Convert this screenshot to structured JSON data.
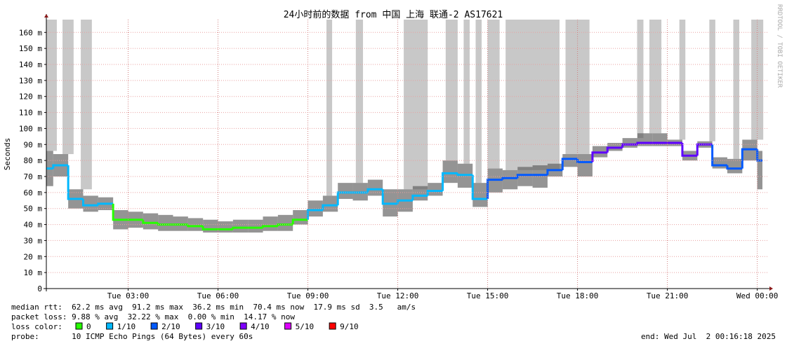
{
  "chart_data": {
    "type": "smokeping",
    "title": "24小时前的数据 from 中国 上海 联通-2 AS17621",
    "y_label": "Seconds",
    "side_note": "RRDTOOL / TOBI OETIKER",
    "xlim": [
      0.27,
      24.36
    ],
    "xticks": [
      {
        "value": 3,
        "label": "Tue 03:00"
      },
      {
        "value": 6,
        "label": "Tue 06:00"
      },
      {
        "value": 9,
        "label": "Tue 09:00"
      },
      {
        "value": 12,
        "label": "Tue 12:00"
      },
      {
        "value": 15,
        "label": "Tue 15:00"
      },
      {
        "value": 18,
        "label": "Tue 18:00"
      },
      {
        "value": 21,
        "label": "Tue 21:00"
      },
      {
        "value": 24,
        "label": "Wed 00:00"
      }
    ],
    "ylim": [
      0,
      168
    ],
    "yticks": [
      0,
      {
        "value": 10,
        "label": "10 m"
      },
      {
        "value": 20,
        "label": "20 m"
      },
      {
        "value": 30,
        "label": "30 m"
      },
      {
        "value": 40,
        "label": "40 m"
      },
      {
        "value": 50,
        "label": "50 m"
      },
      {
        "value": 60,
        "label": "60 m"
      },
      {
        "value": 70,
        "label": "70 m"
      },
      {
        "value": 80,
        "label": "80 m"
      },
      {
        "value": 90,
        "label": "90 m"
      },
      {
        "value": 100,
        "label": "100 m"
      },
      {
        "value": 110,
        "label": "110 m"
      },
      {
        "value": 120,
        "label": "120 m"
      },
      {
        "value": 130,
        "label": "130 m"
      },
      {
        "value": 140,
        "label": "140 m"
      },
      {
        "value": 150,
        "label": "150 m"
      },
      {
        "value": 160,
        "label": "160 m"
      }
    ],
    "grid": true,
    "x": [
      0.27,
      0.5,
      1,
      1.5,
      2,
      2.5,
      3,
      3.5,
      4,
      4.5,
      5,
      5.5,
      6,
      6.5,
      7,
      7.5,
      8,
      8.5,
      9,
      9.5,
      10,
      10.5,
      11,
      11.5,
      12,
      12.5,
      13,
      13.5,
      14,
      14.5,
      15,
      15.5,
      16,
      16.5,
      17,
      17.5,
      18,
      18.5,
      19,
      19.5,
      20,
      20.5,
      21,
      21.5,
      22,
      22.5,
      23,
      23.5,
      24
    ],
    "values": [
      75,
      77,
      56,
      52,
      53,
      43,
      43,
      41,
      40,
      40,
      39,
      37,
      37,
      38,
      38,
      39,
      40,
      43,
      49,
      52,
      60,
      60,
      62,
      53,
      55,
      58,
      61,
      72,
      71,
      56,
      68,
      69,
      71,
      71,
      74,
      81,
      79,
      85,
      88,
      90,
      91,
      91,
      91,
      83,
      90,
      77,
      75,
      87,
      80
    ],
    "smoke_high": [
      86,
      84,
      62,
      58,
      57,
      49,
      48,
      47,
      46,
      45,
      44,
      43,
      42,
      43,
      43,
      45,
      46,
      49,
      55,
      58,
      66,
      66,
      68,
      62,
      62,
      64,
      66,
      80,
      78,
      66,
      75,
      74,
      76,
      77,
      78,
      84,
      84,
      89,
      91,
      94,
      97,
      97,
      93,
      86,
      92,
      82,
      81,
      93,
      86
    ],
    "smoke_low": [
      64,
      70,
      50,
      48,
      49,
      37,
      38,
      37,
      36,
      36,
      36,
      35,
      35,
      35,
      35,
      36,
      36,
      40,
      45,
      48,
      56,
      55,
      58,
      45,
      48,
      55,
      58,
      66,
      63,
      51,
      60,
      62,
      64,
      63,
      70,
      76,
      70,
      82,
      86,
      88,
      89,
      89,
      89,
      80,
      88,
      75,
      72,
      80,
      62
    ],
    "loss": [
      "1/10",
      "1/10",
      "1/10",
      "1/10",
      "1/10",
      "0",
      "0",
      "0",
      "0",
      "0",
      "0",
      "0",
      "0",
      "0",
      "0",
      "0",
      "0",
      "0",
      "1/10",
      "1/10",
      "1/10",
      "1/10",
      "1/10",
      "1/10",
      "1/10",
      "1/10",
      "1/10",
      "1/10",
      "1/10",
      "1/10",
      "2/10",
      "2/10",
      "2/10",
      "2/10",
      "2/10",
      "2/10",
      "2/10",
      "3/10",
      "3/10",
      "3/10",
      "3/10",
      "3/10",
      "3/10",
      "3/10",
      "3/10",
      "2/10",
      "2/10",
      "2/10",
      "2/10"
    ],
    "loss_periods": [
      [
        0.27,
        0.62
      ],
      [
        0.81,
        1.18
      ],
      [
        1.42,
        1.79
      ],
      [
        9.62,
        9.81
      ],
      [
        10.6,
        10.84
      ],
      [
        12.2,
        13.0
      ],
      [
        13.6,
        14.0
      ],
      [
        14.2,
        14.4
      ],
      [
        14.6,
        14.8
      ],
      [
        15.0,
        15.4
      ],
      [
        15.6,
        17.4
      ],
      [
        17.6,
        18.4
      ],
      [
        19.99,
        20.2
      ],
      [
        20.4,
        20.8
      ],
      [
        21.4,
        21.6
      ],
      [
        22.4,
        22.6
      ],
      [
        23.2,
        23.4
      ],
      [
        23.8,
        24.2
      ]
    ],
    "loss_legend": {
      "label": "loss color:",
      "items": [
        {
          "label": "0",
          "color": "#26ff00"
        },
        {
          "label": "1/10",
          "color": "#00b8ff"
        },
        {
          "label": "2/10",
          "color": "#0059ff"
        },
        {
          "label": "3/10",
          "color": "#5e00ff"
        },
        {
          "label": "4/10",
          "color": "#7e00ff"
        },
        {
          "label": "5/10",
          "color": "#dd00ff"
        },
        {
          "label": "9/10",
          "color": "#ff0000"
        }
      ]
    },
    "stats": [
      "median rtt:  62.2 ms avg  91.2 ms max  36.2 ms min  70.4 ms now  17.9 ms sd  3.5   am/s",
      "packet loss: 9.88 % avg  32.22 % max  0.00 % min  14.17 % now"
    ],
    "probe": "probe:       10 ICMP Echo Pings (64 Bytes) every 60s",
    "end": "end: Wed Jul  2 00:16:18 2025"
  }
}
